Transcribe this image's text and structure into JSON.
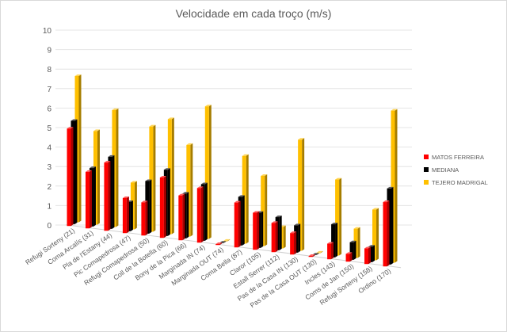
{
  "chart_data": {
    "type": "bar",
    "title": "Velocidade em cada troço (m/s)",
    "xlabel": "",
    "ylabel": "",
    "ylim": [
      0,
      10
    ],
    "yticks": [
      "0",
      "1",
      "2",
      "3",
      "4",
      "5",
      "6",
      "7",
      "8",
      "9",
      "10"
    ],
    "legend_position": "right",
    "categories": [
      "Refugi Sorteny (21)",
      "Coma Arcalís (31)",
      "Pla de l'Estany (44)",
      "Pic Comapedrosa (47)",
      "Refugi Comapedrosa (50)",
      "Coll de la Botella (60)",
      "Bony de la Pica (66)",
      "Marginada IN (74)",
      "Marginada OUT (74)",
      "Coma Bella (87)",
      "Claror (105)",
      "Estall Serrer (112)",
      "Pas de la Casa IN (130)",
      "Pas de la Casa OUT (130)",
      "Incles (143)",
      "Coms de Jan (150)",
      "Refugi Sorteny (158)",
      "Ordino (170)"
    ],
    "series": [
      {
        "name": "MATOS FERREIRA",
        "color": "#ff0000",
        "values": [
          5.0,
          2.9,
          3.5,
          1.8,
          1.7,
          3.1,
          2.3,
          2.8,
          0.05,
          2.3,
          1.9,
          1.5,
          1.1,
          0.05,
          0.8,
          0.4,
          0.8,
          3.3
        ]
      },
      {
        "name": "MEDIANA",
        "color": "#000000",
        "values": [
          5.3,
          3.0,
          3.7,
          1.5,
          2.7,
          3.4,
          2.3,
          2.9,
          0.02,
          2.5,
          1.8,
          1.7,
          1.4,
          0.02,
          1.7,
          0.9,
          0.8,
          3.9
        ]
      },
      {
        "name": "TEJERO MADRIGAL",
        "color": "#ffc000",
        "values": [
          7.5,
          4.8,
          6.0,
          2.4,
          5.4,
          5.9,
          4.7,
          6.8,
          0.0,
          4.5,
          3.6,
          1.1,
          5.7,
          0.0,
          3.9,
          1.5,
          2.6,
          7.8
        ]
      }
    ]
  }
}
